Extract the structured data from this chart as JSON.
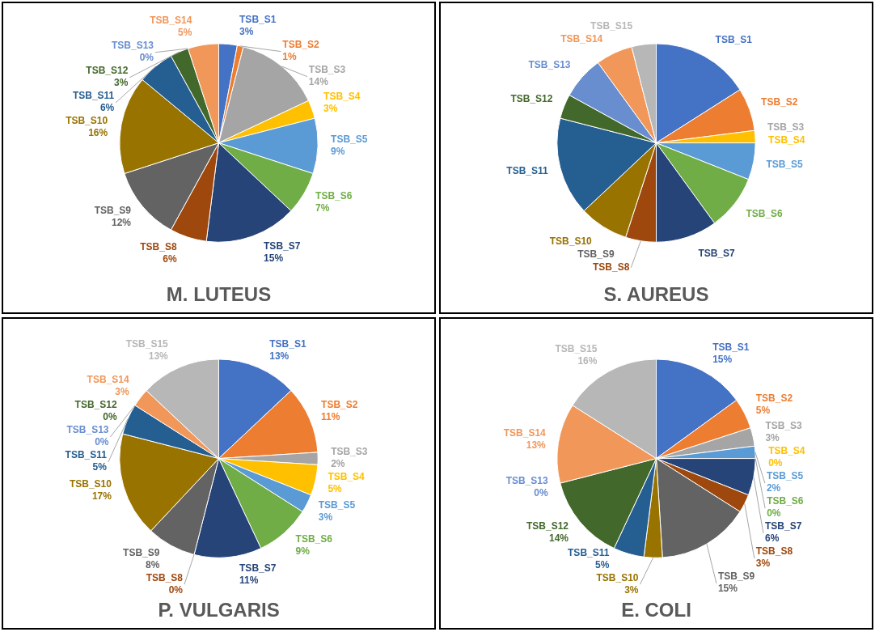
{
  "chart_data": [
    {
      "type": "pie",
      "title": "M. LUTEUS",
      "categories": [
        "TSB_S1",
        "TSB_S2",
        "TSB_S3",
        "TSB_S4",
        "TSB_S5",
        "TSB_S6",
        "TSB_S7",
        "TSB_S8",
        "TSB_S9",
        "TSB_S10",
        "TSB_S11",
        "TSB_S12",
        "TSB_S13",
        "TSB_S14"
      ],
      "values": [
        3,
        1,
        14,
        3,
        9,
        7,
        15,
        6,
        12,
        16,
        6,
        3,
        0,
        5
      ],
      "value_labels": [
        "3%",
        "1%",
        "14%",
        "3%",
        "9%",
        "7%",
        "15%",
        "6%",
        "12%",
        "16%",
        "6%",
        "3%",
        "0%",
        "5%"
      ],
      "colors": [
        "#4472c4",
        "#ed7d31",
        "#a5a5a5",
        "#ffc000",
        "#5b9bd5",
        "#70ad47",
        "#264478",
        "#9e480e",
        "#636363",
        "#997300",
        "#255e91",
        "#43682b",
        "#698ed0",
        "#f1975a"
      ]
    },
    {
      "type": "pie",
      "title": "S. AUREUS",
      "categories": [
        "TSB_S1",
        "TSB_S2",
        "TSB_S3",
        "TSB_S4",
        "TSB_S5",
        "TSB_S6",
        "TSB_S7",
        "TSB_S8",
        "TSB_S9",
        "TSB_S10",
        "TSB_S11",
        "TSB_S12",
        "TSB_S13",
        "TSB_S14",
        "TSB_S15"
      ],
      "values": [
        16,
        7,
        0,
        2,
        6,
        9,
        10,
        5,
        0,
        8,
        16,
        4,
        7,
        6,
        4
      ],
      "colors": [
        "#4472c4",
        "#ed7d31",
        "#a5a5a5",
        "#ffc000",
        "#5b9bd5",
        "#70ad47",
        "#264478",
        "#9e480e",
        "#636363",
        "#997300",
        "#255e91",
        "#43682b",
        "#698ed0",
        "#f1975a",
        "#b7b7b7"
      ]
    },
    {
      "type": "pie",
      "title": "P. VULGARIS",
      "categories": [
        "TSB_S1",
        "TSB_S2",
        "TSB_S3",
        "TSB_S4",
        "TSB_S5",
        "TSB_S6",
        "TSB_S7",
        "TSB_S8",
        "TSB_S9",
        "TSB_S10",
        "TSB_S11",
        "TSB_S12",
        "TSB_S13",
        "TSB_S14",
        "TSB_S15"
      ],
      "values": [
        13,
        11,
        2,
        5,
        3,
        9,
        11,
        0,
        8,
        17,
        5,
        0,
        0,
        3,
        13
      ],
      "value_labels": [
        "13%",
        "11%",
        "2%",
        "5%",
        "3%",
        "9%",
        "11%",
        "0%",
        "8%",
        "17%",
        "5%",
        "0%",
        "0%",
        "3%",
        "13%"
      ],
      "colors": [
        "#4472c4",
        "#ed7d31",
        "#a5a5a5",
        "#ffc000",
        "#5b9bd5",
        "#70ad47",
        "#264478",
        "#9e480e",
        "#636363",
        "#997300",
        "#255e91",
        "#43682b",
        "#698ed0",
        "#f1975a",
        "#b7b7b7"
      ]
    },
    {
      "type": "pie",
      "title": "E. COLI",
      "categories": [
        "TSB_S1",
        "TSB_S2",
        "TSB_S3",
        "TSB_S4",
        "TSB_S5",
        "TSB_S6",
        "TSB_S7",
        "TSB_S8",
        "TSB_S9",
        "TSB_S10",
        "TSB_S11",
        "TSB_S12",
        "TSB_S13",
        "TSB_S14",
        "TSB_S15"
      ],
      "values": [
        15,
        5,
        3,
        0,
        2,
        0,
        6,
        3,
        15,
        3,
        5,
        14,
        0,
        13,
        16
      ],
      "value_labels": [
        "15%",
        "5%",
        "3%",
        "0%",
        "2%",
        "0%",
        "6%",
        "3%",
        "15%",
        "3%",
        "5%",
        "14%",
        "0%",
        "13%",
        "16%"
      ],
      "colors": [
        "#4472c4",
        "#ed7d31",
        "#a5a5a5",
        "#ffc000",
        "#5b9bd5",
        "#70ad47",
        "#264478",
        "#9e480e",
        "#636363",
        "#997300",
        "#255e91",
        "#43682b",
        "#698ed0",
        "#f1975a",
        "#b7b7b7"
      ]
    }
  ]
}
